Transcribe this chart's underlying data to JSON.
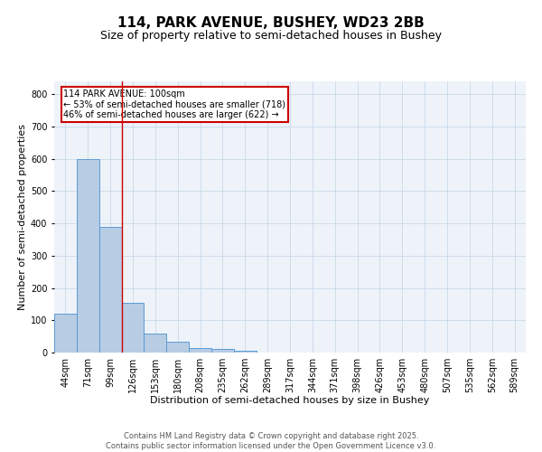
{
  "title": "114, PARK AVENUE, BUSHEY, WD23 2BB",
  "subtitle": "Size of property relative to semi-detached houses in Bushey",
  "xlabel": "Distribution of semi-detached houses by size in Bushey",
  "ylabel": "Number of semi-detached properties",
  "footer_line1": "Contains HM Land Registry data © Crown copyright and database right 2025.",
  "footer_line2": "Contains public sector information licensed under the Open Government Licence v3.0.",
  "bins": [
    "44sqm",
    "71sqm",
    "99sqm",
    "126sqm",
    "153sqm",
    "180sqm",
    "208sqm",
    "235sqm",
    "262sqm",
    "289sqm",
    "317sqm",
    "344sqm",
    "371sqm",
    "398sqm",
    "426sqm",
    "453sqm",
    "480sqm",
    "507sqm",
    "535sqm",
    "562sqm",
    "589sqm"
  ],
  "values": [
    120,
    600,
    390,
    155,
    60,
    35,
    15,
    10,
    5,
    0,
    0,
    0,
    0,
    0,
    0,
    0,
    0,
    0,
    0,
    0,
    0
  ],
  "bar_color": "#b8cce4",
  "bar_edge_color": "#5b9bd5",
  "grid_color": "#c8d8e8",
  "background_color": "#eef3f9",
  "property_line_color": "#cc0000",
  "property_line_x": 2.5,
  "annotation_text": "114 PARK AVENUE: 100sqm\n← 53% of semi-detached houses are smaller (718)\n46% of semi-detached houses are larger (622) →",
  "annotation_box_color": "#cc0000",
  "ylim": [
    0,
    840
  ],
  "yticks": [
    0,
    100,
    200,
    300,
    400,
    500,
    600,
    700,
    800
  ],
  "title_fontsize": 11,
  "subtitle_fontsize": 9,
  "axis_fontsize": 8,
  "tick_fontsize": 7,
  "footer_fontsize": 6
}
